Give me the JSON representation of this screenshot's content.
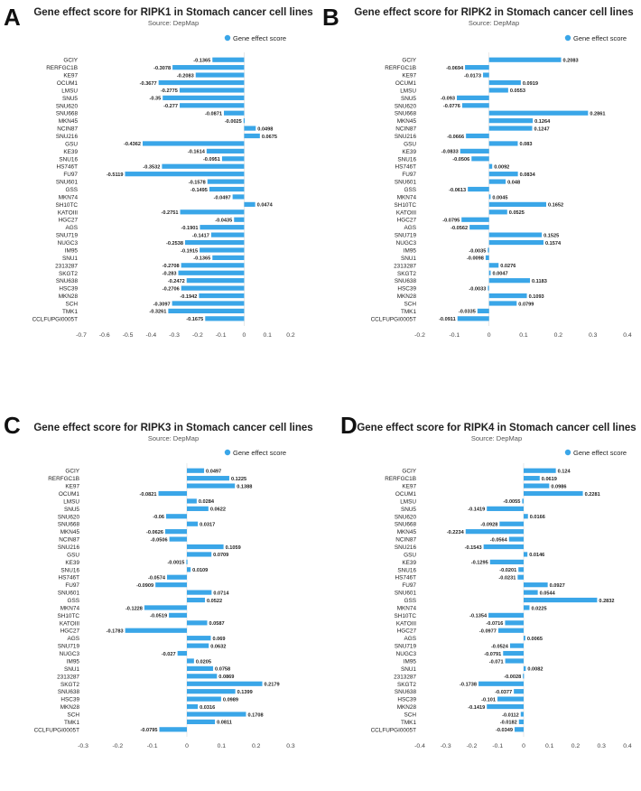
{
  "colors": {
    "bar": "#3aa6e8",
    "axis": "#555555",
    "text": "#222222",
    "grid": "#e5e5e5"
  },
  "panels": [
    {
      "letter": "A",
      "title": "Gene effect score for RIPK1 in Stomach cancer cell lines",
      "subtitle": "Source: DepMap",
      "legend": "Gene effect score"
    },
    {
      "letter": "B",
      "title": "Gene effect score for RIPK2 in Stomach cancer cell lines",
      "subtitle": "Source: DepMap",
      "legend": "Gene effect score"
    },
    {
      "letter": "C",
      "title": "Gene effect score for RIPK3 in Stomach cancer cell lines",
      "subtitle": "Source: DepMap",
      "legend": "Gene effect score"
    },
    {
      "letter": "D",
      "title": "Gene effect score for RIPK4 in Stomach cancer cell lines",
      "subtitle": "Source: DepMap",
      "legend": "Gene effect score"
    }
  ],
  "chart_data": [
    {
      "type": "bar",
      "orientation": "horizontal",
      "title": "Gene effect score for RIPK1 in Stomach cancer cell lines",
      "subtitle": "Source: DepMap",
      "legend_position": "top-right",
      "categories": [
        "GCIY",
        "RERFGC1B",
        "KE97",
        "OCUM1",
        "LMSU",
        "SNU5",
        "SNU620",
        "SNU668",
        "MKN45",
        "NCIN87",
        "SNU216",
        "GSU",
        "KE39",
        "SNU16",
        "HS746T",
        "FU97",
        "SNU601",
        "GSS",
        "MKN74",
        "SH10TC",
        "KATOIII",
        "HGC27",
        "AGS",
        "SNU719",
        "NUGC3",
        "IM95",
        "SNU1",
        "2313287",
        "SKGT2",
        "SNU638",
        "HSC39",
        "MKN28",
        "SCH",
        "TMK1",
        "CCLFUPGI0005T"
      ],
      "series": [
        {
          "name": "Gene effect score",
          "values": [
            -0.1365,
            -0.3078,
            -0.2083,
            -0.3677,
            -0.2775,
            -0.35,
            -0.277,
            -0.0871,
            -0.0025,
            0.0498,
            0.0675,
            -0.4362,
            -0.1614,
            -0.0951,
            -0.3532,
            -0.5119,
            -0.1578,
            -0.1495,
            -0.0497,
            0.0474,
            -0.2751,
            -0.0435,
            -0.1901,
            -0.1417,
            -0.2538,
            -0.1915,
            -0.1365,
            -0.2708,
            -0.283,
            -0.2472,
            -0.2706,
            -0.1942,
            -0.3097,
            -0.3261,
            -0.1675
          ]
        }
      ],
      "labels": [
        "-0.1365",
        "-0.3078",
        "-0.2083",
        "-0.3677",
        "-0.2775",
        "-0.35",
        "-0.277",
        "-0.0871",
        "-0.0025",
        "0.0498",
        "0.0675",
        "-0.4362",
        "-0.1614",
        "-0.0951",
        "-0.3532",
        "-0.5119",
        "-0.1578",
        "-0.1495",
        "-0.0497",
        "0.0474",
        "-0.2751",
        "-0.0435",
        "-0.1901",
        "-0.1417",
        "-0.2538",
        "-0.1915",
        "-0.1365",
        "-0.2708",
        "-0.283",
        "-0.2472",
        "-0.2706",
        "-0.1942",
        "-0.3097",
        "-0.3261",
        "-0.1675"
      ],
      "xlim": [
        -0.7,
        0.2
      ],
      "xticks": [
        "-0.7",
        "-0.6",
        "-0.5",
        "-0.4",
        "-0.3",
        "-0.2",
        "-0.1",
        "0",
        "0.1",
        "0.2"
      ],
      "xtick_values": [
        -0.7,
        -0.6,
        -0.5,
        -0.4,
        -0.3,
        -0.2,
        -0.1,
        0,
        0.1,
        0.2
      ]
    },
    {
      "type": "bar",
      "orientation": "horizontal",
      "title": "Gene effect score for RIPK2 in Stomach cancer cell lines",
      "subtitle": "Source: DepMap",
      "legend_position": "top-right",
      "categories": [
        "GCIY",
        "RERFGC1B",
        "KE97",
        "OCUM1",
        "LMSU",
        "SNU5",
        "SNU620",
        "SNU668",
        "MKN45",
        "NCIN87",
        "SNU216",
        "GSU",
        "KE39",
        "SNU16",
        "HS746T",
        "FU97",
        "SNU601",
        "GSS",
        "MKN74",
        "SH10TC",
        "KATOIII",
        "HGC27",
        "AGS",
        "SNU719",
        "NUGC3",
        "IM95",
        "SNU1",
        "2313287",
        "SKGT2",
        "SNU638",
        "HSC39",
        "MKN28",
        "SCH",
        "TMK1",
        "CCLFUPGI0005T"
      ],
      "series": [
        {
          "name": "Gene effect score",
          "values": [
            0.2083,
            -0.0694,
            -0.0173,
            0.0919,
            0.0553,
            -0.093,
            -0.0776,
            0.2861,
            0.1264,
            0.1247,
            -0.0666,
            0.083,
            -0.0833,
            -0.0506,
            0.0092,
            0.0834,
            0.048,
            -0.0613,
            0.0045,
            0.1652,
            0.0525,
            -0.0795,
            -0.0562,
            0.1525,
            0.1574,
            -0.0035,
            -0.0098,
            0.0276,
            0.0047,
            0.1183,
            -0.0033,
            0.1093,
            0.0799,
            -0.0335,
            -0.0911
          ]
        }
      ],
      "labels": [
        "0.2083",
        "-0.0694",
        "-0.0173",
        "0.0919",
        "0.0553",
        "-0.093",
        "-0.0776",
        "0.2861",
        "0.1264",
        "0.1247",
        "-0.0666",
        "0.083",
        "-0.0833",
        "-0.0506",
        "0.0092",
        "0.0834",
        "0.048",
        "-0.0613",
        "0.0045",
        "0.1652",
        "0.0525",
        "-0.0795",
        "-0.0562",
        "0.1525",
        "0.1574",
        "-0.0035",
        "-0.0098",
        "0.0276",
        "0.0047",
        "0.1183",
        "-0.0033",
        "0.1093",
        "0.0799",
        "-0.0335",
        "-0.0911"
      ],
      "xlim": [
        -0.2,
        0.4
      ],
      "xticks": [
        "-0.2",
        "-0.1",
        "0",
        "0.1",
        "0.2",
        "0.3",
        "0.4"
      ],
      "xtick_values": [
        -0.2,
        -0.1,
        0,
        0.1,
        0.2,
        0.3,
        0.4
      ]
    },
    {
      "type": "bar",
      "orientation": "horizontal",
      "title": "Gene effect score for RIPK3 in Stomach cancer cell lines",
      "subtitle": "Source: DepMap",
      "legend_position": "top-right",
      "categories": [
        "GCIY",
        "RERFGC1B",
        "KE97",
        "OCUM1",
        "LMSU",
        "SNU5",
        "SNU620",
        "SNU668",
        "MKN45",
        "NCIN87",
        "SNU216",
        "GSU",
        "KE39",
        "SNU16",
        "HS746T",
        "FU97",
        "SNU601",
        "GSS",
        "MKN74",
        "SH10TC",
        "KATOIII",
        "HGC27",
        "AGS",
        "SNU719",
        "NUGC3",
        "IM95",
        "SNU1",
        "2313287",
        "SKGT2",
        "SNU638",
        "HSC39",
        "MKN28",
        "SCH",
        "TMK1",
        "CCLFUPGI0005T"
      ],
      "series": [
        {
          "name": "Gene effect score",
          "values": [
            0.0497,
            0.1225,
            0.1388,
            -0.0821,
            0.0284,
            0.0622,
            -0.06,
            0.0317,
            -0.0626,
            -0.0506,
            0.1059,
            0.0709,
            -0.0015,
            0.0109,
            -0.0574,
            -0.0909,
            0.0714,
            0.0522,
            -0.1228,
            -0.0519,
            0.0587,
            -0.1783,
            0.069,
            0.0632,
            -0.027,
            0.0205,
            0.0758,
            0.0869,
            0.2179,
            0.1399,
            0.0989,
            0.0316,
            0.1708,
            0.0811,
            -0.0795
          ]
        }
      ],
      "labels": [
        "0.0497",
        "0.1225",
        "0.1388",
        "-0.0821",
        "0.0284",
        "0.0622",
        "-0.06",
        "0.0317",
        "-0.0626",
        "-0.0506",
        "0.1059",
        "0.0709",
        "-0.0015",
        "0.0109",
        "-0.0574",
        "-0.0909",
        "0.0714",
        "0.0522",
        "-0.1228",
        "-0.0519",
        "0.0587",
        "-0.1783",
        "0.069",
        "0.0632",
        "-0.027",
        "0.0205",
        "0.0758",
        "0.0869",
        "0.2179",
        "0.1399",
        "0.0989",
        "0.0316",
        "0.1708",
        "0.0811",
        "-0.0795"
      ],
      "xlim": [
        -0.3,
        0.3
      ],
      "xticks": [
        "-0.3",
        "-0.2",
        "-0.1",
        "0",
        "0.1",
        "0.2",
        "0.3"
      ],
      "xtick_values": [
        -0.3,
        -0.2,
        -0.1,
        0,
        0.1,
        0.2,
        0.3
      ]
    },
    {
      "type": "bar",
      "orientation": "horizontal",
      "title": "Gene effect score for RIPK4 in Stomach cancer cell lines",
      "subtitle": "Source: DepMap",
      "legend_position": "top-right",
      "categories": [
        "GCIY",
        "RERFGC1B",
        "KE97",
        "OCUM1",
        "LMSU",
        "SNU5",
        "SNU620",
        "SNU668",
        "MKN45",
        "NCIN87",
        "SNU216",
        "GSU",
        "KE39",
        "SNU16",
        "HS746T",
        "FU97",
        "SNU601",
        "GSS",
        "MKN74",
        "SH10TC",
        "KATOIII",
        "HGC27",
        "AGS",
        "SNU719",
        "NUGC3",
        "IM95",
        "SNU1",
        "2313287",
        "SKGT2",
        "SNU638",
        "HSC39",
        "MKN28",
        "SCH",
        "TMK1",
        "CCLFUPGI0005T"
      ],
      "series": [
        {
          "name": "Gene effect score",
          "values": [
            0.124,
            0.0619,
            0.0986,
            0.2281,
            -0.0055,
            -0.1419,
            0.0166,
            -0.0928,
            -0.2234,
            -0.0564,
            -0.1543,
            0.0146,
            -0.1295,
            -0.0201,
            -0.0231,
            0.0927,
            0.0544,
            0.2832,
            0.0225,
            -0.1354,
            -0.0716,
            -0.0977,
            0.0065,
            -0.0524,
            -0.0791,
            -0.071,
            0.0082,
            -0.0028,
            -0.1738,
            -0.0377,
            -0.101,
            -0.1419,
            -0.0112,
            -0.0182,
            -0.0349
          ]
        }
      ],
      "labels": [
        "0.124",
        "0.0619",
        "0.0986",
        "0.2281",
        "-0.0055",
        "-0.1419",
        "0.0166",
        "-0.0928",
        "-0.2234",
        "-0.0564",
        "-0.1543",
        "0.0146",
        "-0.1295",
        "-0.0201",
        "-0.0231",
        "0.0927",
        "0.0544",
        "0.2832",
        "0.0225",
        "-0.1354",
        "-0.0716",
        "-0.0977",
        "0.0065",
        "-0.0524",
        "-0.0791",
        "-0.071",
        "0.0082",
        "-0.0028",
        "-0.1738",
        "-0.0377",
        "-0.101",
        "-0.1419",
        "-0.0112",
        "-0.0182",
        "-0.0349"
      ],
      "xlim": [
        -0.4,
        0.4
      ],
      "xticks": [
        "-0.4",
        "-0.3",
        "-0.2",
        "-0.1",
        "0",
        "0.1",
        "0.2",
        "0.3",
        "0.4"
      ],
      "xtick_values": [
        -0.4,
        -0.3,
        -0.2,
        -0.1,
        0,
        0.1,
        0.2,
        0.3,
        0.4
      ]
    }
  ]
}
